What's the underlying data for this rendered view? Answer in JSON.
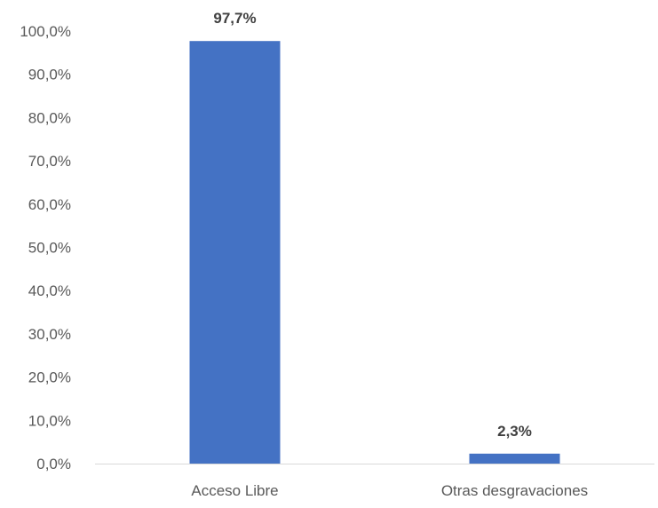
{
  "chart_data": {
    "type": "bar",
    "categories": [
      "Acceso Libre",
      "Otras desgravaciones"
    ],
    "values": [
      97.7,
      2.3
    ],
    "data_labels": [
      "97,7%",
      "2,3%"
    ],
    "y_tick_labels": [
      "0,0%",
      "10,0%",
      "20,0%",
      "30,0%",
      "40,0%",
      "50,0%",
      "60,0%",
      "70,0%",
      "80,0%",
      "90,0%",
      "100,0%"
    ],
    "ylim": [
      0,
      100
    ],
    "title": "",
    "xlabel": "",
    "ylabel": "",
    "grid": false,
    "legend": "none",
    "bar_color": "#4472C4",
    "axis_color": "#D9D9D9",
    "text_color": "#595959",
    "label_color": "#404040"
  }
}
